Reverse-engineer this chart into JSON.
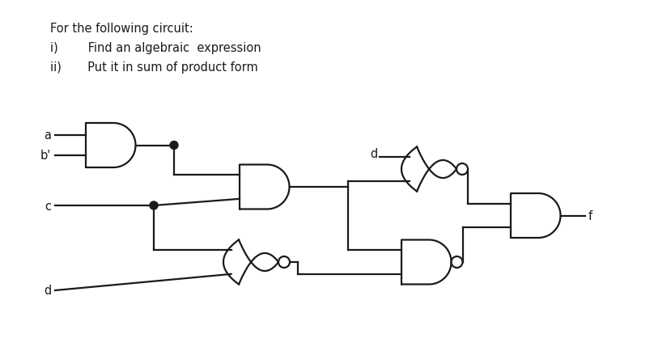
{
  "title_line0": "For the following circuit:",
  "title_line1": "i)        Find an algebraic  expression",
  "title_line2": "ii)       Put it in sum of product form",
  "bg_color": "#ffffff",
  "line_color": "#1a1a1a",
  "text_color": "#1a1a1a",
  "gate_lw": 1.6,
  "wire_lw": 1.6,
  "title_fontsize": 10.5,
  "label_fontsize": 10.5
}
